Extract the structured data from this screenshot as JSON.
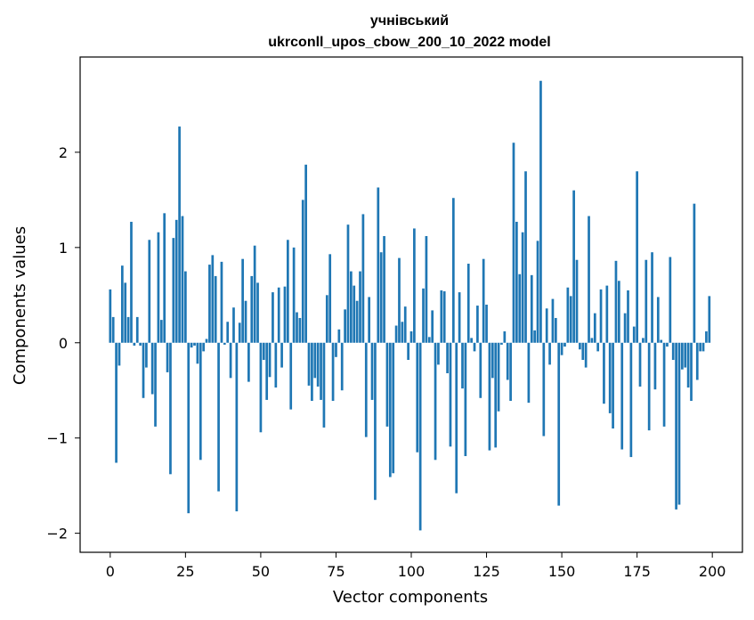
{
  "chart_data": {
    "type": "bar",
    "title": "учнівський",
    "subtitle": "ukrconll_upos_cbow_200_10_2022 model",
    "xlabel": "Vector components",
    "ylabel": "Components values",
    "xlim": [
      -10,
      210
    ],
    "ylim": [
      -2.2,
      3.0
    ],
    "xticks": [
      0,
      25,
      50,
      75,
      100,
      125,
      150,
      175,
      200
    ],
    "xtick_labels": [
      "0",
      "25",
      "50",
      "75",
      "100",
      "125",
      "150",
      "175",
      "200"
    ],
    "yticks": [
      -2,
      -1,
      0,
      1,
      2
    ],
    "ytick_labels": [
      "−2",
      "−1",
      "0",
      "1",
      "2"
    ],
    "grid": false,
    "bar_color": "#1f77b4",
    "x": [
      0,
      1,
      2,
      3,
      4,
      5,
      6,
      7,
      8,
      9,
      10,
      11,
      12,
      13,
      14,
      15,
      16,
      17,
      18,
      19,
      20,
      21,
      22,
      23,
      24,
      25,
      26,
      27,
      28,
      29,
      30,
      31,
      32,
      33,
      34,
      35,
      36,
      37,
      38,
      39,
      40,
      41,
      42,
      43,
      44,
      45,
      46,
      47,
      48,
      49,
      50,
      51,
      52,
      53,
      54,
      55,
      56,
      57,
      58,
      59,
      60,
      61,
      62,
      63,
      64,
      65,
      66,
      67,
      68,
      69,
      70,
      71,
      72,
      73,
      74,
      75,
      76,
      77,
      78,
      79,
      80,
      81,
      82,
      83,
      84,
      85,
      86,
      87,
      88,
      89,
      90,
      91,
      92,
      93,
      94,
      95,
      96,
      97,
      98,
      99,
      100,
      101,
      102,
      103,
      104,
      105,
      106,
      107,
      108,
      109,
      110,
      111,
      112,
      113,
      114,
      115,
      116,
      117,
      118,
      119,
      120,
      121,
      122,
      123,
      124,
      125,
      126,
      127,
      128,
      129,
      130,
      131,
      132,
      133,
      134,
      135,
      136,
      137,
      138,
      139,
      140,
      141,
      142,
      143,
      144,
      145,
      146,
      147,
      148,
      149,
      150,
      151,
      152,
      153,
      154,
      155,
      156,
      157,
      158,
      159,
      160,
      161,
      162,
      163,
      164,
      165,
      166,
      167,
      168,
      169,
      170,
      171,
      172,
      173,
      174,
      175,
      176,
      177,
      178,
      179,
      180,
      181,
      182,
      183,
      184,
      185,
      186,
      187,
      188,
      189,
      190,
      191,
      192,
      193,
      194,
      195,
      196,
      197,
      198,
      199
    ],
    "values": [
      0.56,
      0.27,
      -1.26,
      -0.24,
      0.81,
      0.63,
      0.27,
      1.27,
      -0.03,
      0.27,
      -0.03,
      -0.58,
      -0.26,
      1.08,
      -0.54,
      -0.88,
      1.16,
      0.24,
      1.36,
      -0.31,
      -1.38,
      1.1,
      1.29,
      2.27,
      1.33,
      0.75,
      -1.79,
      -0.05,
      -0.03,
      -0.22,
      -1.23,
      -0.09,
      0.04,
      0.82,
      0.92,
      0.7,
      -1.56,
      0.85,
      -0.02,
      0.22,
      -0.37,
      0.37,
      -1.77,
      0.21,
      0.88,
      0.44,
      -0.41,
      0.7,
      1.02,
      0.63,
      -0.94,
      -0.18,
      -0.6,
      -0.36,
      0.53,
      -0.47,
      0.58,
      -0.26,
      0.59,
      1.08,
      -0.7,
      1.0,
      0.32,
      0.26,
      1.5,
      1.87,
      -0.45,
      -0.61,
      -0.37,
      -0.46,
      -0.6,
      -0.89,
      0.5,
      0.93,
      -0.61,
      -0.15,
      0.14,
      -0.5,
      0.35,
      1.24,
      0.75,
      0.6,
      0.44,
      0.75,
      1.35,
      -0.99,
      0.48,
      -0.6,
      -1.65,
      1.63,
      0.95,
      1.12,
      -0.88,
      -1.41,
      -1.37,
      0.18,
      0.89,
      0.22,
      0.38,
      -0.18,
      0.12,
      1.2,
      -1.15,
      -1.97,
      0.57,
      1.12,
      0.06,
      0.34,
      -1.23,
      -0.23,
      0.55,
      0.54,
      -0.32,
      -1.09,
      1.52,
      -1.58,
      0.53,
      -0.48,
      -1.19,
      0.83,
      0.05,
      -0.09,
      0.39,
      -0.58,
      0.88,
      0.4,
      -1.13,
      -0.37,
      -1.1,
      -0.72,
      -0.02,
      0.12,
      -0.39,
      -0.61,
      2.1,
      1.27,
      0.72,
      1.16,
      1.8,
      -0.63,
      0.71,
      0.13,
      1.07,
      2.75,
      -0.98,
      0.36,
      -0.23,
      0.46,
      0.26,
      -1.71,
      -0.13,
      -0.04,
      0.58,
      0.49,
      1.6,
      0.87,
      -0.07,
      -0.18,
      -0.26,
      1.33,
      0.05,
      0.31,
      -0.09,
      0.56,
      -0.64,
      0.6,
      -0.74,
      -0.9,
      0.86,
      0.65,
      -1.12,
      0.31,
      0.55,
      -1.2,
      0.17,
      1.8,
      -0.46,
      0.05,
      0.87,
      -0.92,
      0.95,
      -0.49,
      0.48,
      0.03,
      -0.88,
      -0.04,
      0.9,
      -0.18,
      -1.75,
      -1.7,
      -0.28,
      -0.26,
      -0.47,
      -0.61,
      1.46,
      -0.39,
      -0.09,
      -0.09,
      0.12,
      0.49
    ]
  }
}
